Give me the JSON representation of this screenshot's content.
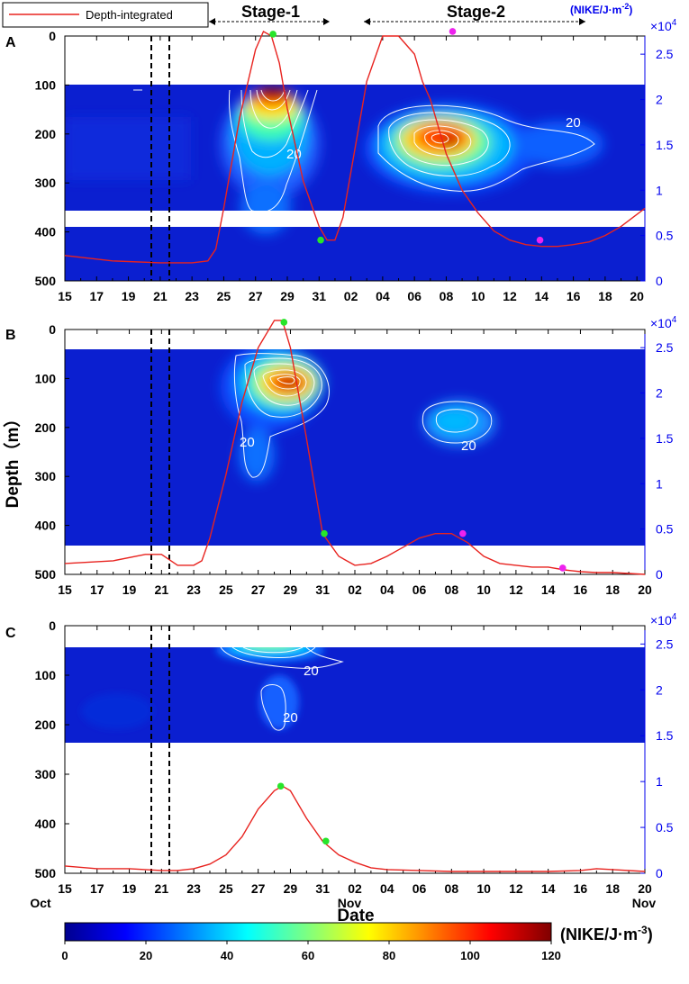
{
  "legend": {
    "label": "Depth-integrated",
    "color": "#e8231f"
  },
  "stages": {
    "stage1": "Stage-1",
    "stage2": "Stage-2"
  },
  "right_axis_unit": "(NIKE/J·m",
  "right_axis_unit_sup": "-2",
  "right_axis_unit_close": ")",
  "exponent": {
    "base": "×10",
    "power": "4"
  },
  "y_axis_label": "Depth（m）",
  "x_axis_label": "Date",
  "month_labels": {
    "oct": "Oct",
    "nov_mid": "Nov",
    "nov_end": "Nov"
  },
  "colorbar": {
    "unit": "(NIKE/J·m",
    "unit_sup": "-3",
    "unit_close": ")",
    "ticks": [
      "0",
      "20",
      "40",
      "60",
      "80",
      "100",
      "120"
    ],
    "range": [
      0,
      120
    ],
    "colormap": "jet"
  },
  "chart_data": [
    {
      "panel": "A",
      "type": "heatmap",
      "x_ticks": [
        "15",
        "17",
        "19",
        "21",
        "23",
        "25",
        "27",
        "29",
        "31",
        "02",
        "04",
        "06",
        "08",
        "10",
        "12",
        "14",
        "16",
        "18",
        "20"
      ],
      "y_ticks": [
        "0",
        "100",
        "200",
        "300",
        "400",
        "500"
      ],
      "ylim": [
        0,
        500
      ],
      "right_ticks": [
        "0",
        "0.5",
        "1",
        "1.5",
        "2",
        "2.5"
      ],
      "right_lim": [
        0,
        2.7
      ],
      "data_depth_ranges": [
        [
          100,
          360
        ],
        [
          390,
          500
        ]
      ],
      "xlim_days": [
        0,
        36.5
      ],
      "contour_label": "20",
      "curve_days": [
        0,
        3,
        6,
        8,
        9,
        9.5,
        10,
        11,
        12,
        12.5,
        13,
        13.5,
        14,
        15,
        16,
        16.5,
        17,
        17.5,
        18,
        18.5,
        19,
        20,
        21,
        22,
        22.5,
        23,
        24,
        25,
        26,
        27,
        28,
        29,
        30,
        31,
        32,
        33,
        34,
        35,
        36.5
      ],
      "curve_values": [
        0.28,
        0.22,
        0.2,
        0.2,
        0.22,
        0.35,
        0.8,
        1.8,
        2.55,
        2.75,
        2.7,
        2.4,
        1.9,
        1.1,
        0.6,
        0.45,
        0.45,
        0.7,
        1.2,
        1.7,
        2.2,
        2.7,
        2.7,
        2.5,
        2.2,
        2.0,
        1.4,
        1.0,
        0.75,
        0.55,
        0.45,
        0.4,
        0.38,
        0.38,
        0.4,
        0.43,
        0.5,
        0.6,
        0.8
      ],
      "markers": [
        {
          "day": 13.1,
          "value": 2.72,
          "color": "#27e52a"
        },
        {
          "day": 16.1,
          "value": 0.45,
          "color": "#27e52a"
        },
        {
          "day": 24.4,
          "value": 2.75,
          "color": "#ee22ee"
        },
        {
          "day": 29.9,
          "value": 0.45,
          "color": "#ee22ee"
        }
      ]
    },
    {
      "panel": "B",
      "type": "heatmap",
      "x_ticks": [
        "15",
        "17",
        "19",
        "21",
        "23",
        "25",
        "27",
        "29",
        "31",
        "02",
        "04",
        "06",
        "08",
        "10",
        "12",
        "14",
        "16",
        "18",
        "20"
      ],
      "y_ticks": [
        "0",
        "100",
        "200",
        "300",
        "400",
        "500"
      ],
      "ylim": [
        0,
        500
      ],
      "right_ticks": [
        "0",
        "0.5",
        "1",
        "1.5",
        "2",
        "2.5"
      ],
      "right_lim": [
        0,
        2.7
      ],
      "data_depth_ranges": [
        [
          40,
          440
        ]
      ],
      "xlim_days": [
        0,
        36
      ],
      "contour_label": "20",
      "curve_days": [
        0,
        3,
        5,
        6,
        7,
        8,
        8.5,
        9,
        10,
        11,
        12,
        13,
        13.5,
        14,
        15,
        16,
        17,
        18,
        19,
        20,
        21,
        22,
        23,
        24,
        25,
        26,
        27,
        28,
        29,
        30,
        31,
        32,
        33,
        34,
        35,
        36
      ],
      "curve_values": [
        0.12,
        0.15,
        0.22,
        0.22,
        0.1,
        0.1,
        0.15,
        0.4,
        1.1,
        1.9,
        2.5,
        2.8,
        2.8,
        2.5,
        1.5,
        0.45,
        0.2,
        0.1,
        0.12,
        0.2,
        0.3,
        0.4,
        0.45,
        0.45,
        0.35,
        0.2,
        0.12,
        0.1,
        0.08,
        0.08,
        0.05,
        0.03,
        0.02,
        0.02,
        0.01,
        0.0
      ],
      "markers": [
        {
          "day": 13.6,
          "value": 2.78,
          "color": "#27e52a"
        },
        {
          "day": 16.1,
          "value": 0.45,
          "color": "#27e52a"
        },
        {
          "day": 24.7,
          "value": 0.45,
          "color": "#ee22ee"
        },
        {
          "day": 30.9,
          "value": 0.07,
          "color": "#ee22ee"
        }
      ]
    },
    {
      "panel": "C",
      "type": "heatmap",
      "x_ticks": [
        "15",
        "17",
        "19",
        "21",
        "23",
        "25",
        "27",
        "29",
        "31",
        "02",
        "04",
        "06",
        "08",
        "10",
        "12",
        "14",
        "16",
        "18",
        "20"
      ],
      "y_ticks": [
        "0",
        "100",
        "200",
        "300",
        "400",
        "500"
      ],
      "ylim": [
        0,
        500
      ],
      "right_ticks": [
        "0",
        "0.5",
        "1",
        "1.5",
        "2",
        "2.5"
      ],
      "right_lim": [
        0,
        2.7
      ],
      "data_depth_ranges": [
        [
          40,
          230
        ]
      ],
      "xlim_days": [
        0,
        36
      ],
      "contour_label": "20",
      "curve_days": [
        0,
        2,
        4,
        6,
        7,
        8,
        9,
        10,
        11,
        12,
        13,
        13.5,
        14,
        15,
        16,
        17,
        18,
        19,
        20,
        22,
        24,
        26,
        28,
        30,
        32,
        33,
        34,
        36
      ],
      "curve_values": [
        0.08,
        0.05,
        0.05,
        0.03,
        0.03,
        0.05,
        0.1,
        0.2,
        0.4,
        0.7,
        0.9,
        0.95,
        0.9,
        0.6,
        0.35,
        0.2,
        0.12,
        0.06,
        0.04,
        0.03,
        0.02,
        0.02,
        0.02,
        0.02,
        0.03,
        0.05,
        0.04,
        0.02
      ],
      "markers": [
        {
          "day": 13.4,
          "value": 0.95,
          "color": "#27e52a"
        },
        {
          "day": 16.2,
          "value": 0.35,
          "color": "#27e52a"
        }
      ]
    }
  ]
}
